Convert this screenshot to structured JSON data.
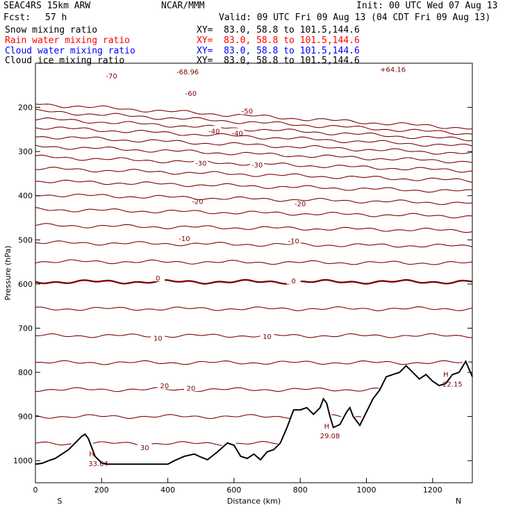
{
  "header": {
    "model": "SEAC4RS 15km ARW",
    "org": "NCAR/MMM",
    "init": "Init: 00 UTC Wed 07 Aug 13",
    "fcst_label": "Fcst:",
    "fcst_value": "57 h",
    "valid": "Valid: 09 UTC Fri 09 Aug 13 (04 CDT Fri 09 Aug 13)"
  },
  "fields": [
    {
      "name": "Snow mixing ratio",
      "xy": "XY=  83.0, 58.8 to 101.5,144.6",
      "color": "#000000"
    },
    {
      "name": "Rain water mixing ratio",
      "xy": "XY=  83.0, 58.8 to 101.5,144.6",
      "color": "#ff0000"
    },
    {
      "name": "Cloud water mixing ratio",
      "xy": "XY=  83.0, 58.8 to 101.5,144.6",
      "color": "#0000ff"
    },
    {
      "name": "Cloud ice mixing ratio",
      "xy": "XY=  83.0, 58.8 to 101.5,144.6",
      "color": "#000000"
    }
  ],
  "chart_data": {
    "type": "line",
    "xlabel": "Distance (km)",
    "ylabel": "Pressure (hPa)",
    "xlim": [
      0,
      1320
    ],
    "ylim": [
      1050,
      100
    ],
    "x_ticks": [
      0,
      200,
      400,
      600,
      800,
      1000,
      1200
    ],
    "y_ticks": [
      200,
      300,
      400,
      500,
      600,
      700,
      800,
      900,
      1000
    ],
    "x_end_labels": {
      "left": "S",
      "right": "N"
    },
    "contour_color": "#800000",
    "isotherms": [
      {
        "value": -70,
        "label": "-70",
        "label_positions": [
          [
            230,
            128
          ]
        ]
      },
      {
        "value": -60,
        "label": "-60",
        "label_positions": [
          [
            470,
            168
          ]
        ]
      },
      {
        "value": -50,
        "label": "-50",
        "label_positions": [
          [
            640,
            208
          ]
        ]
      },
      {
        "value": -40,
        "label": "-40",
        "label_positions": [
          [
            540,
            253
          ],
          [
            610,
            258
          ]
        ]
      },
      {
        "value": -30,
        "label": "-30",
        "label_positions": [
          [
            500,
            326
          ],
          [
            670,
            330
          ]
        ]
      },
      {
        "value": -20,
        "label": "-20",
        "label_positions": [
          [
            490,
            412
          ],
          [
            800,
            418
          ]
        ]
      },
      {
        "value": -10,
        "label": "-10",
        "label_positions": [
          [
            450,
            496
          ],
          [
            780,
            502
          ]
        ]
      },
      {
        "value": 0,
        "label": "0",
        "label_positions": [
          [
            370,
            586
          ],
          [
            780,
            592
          ]
        ],
        "bold": true
      },
      {
        "value": 10,
        "label": "10",
        "label_positions": [
          [
            370,
            722
          ],
          [
            700,
            718
          ]
        ]
      },
      {
        "value": 20,
        "label": "20",
        "label_positions": [
          [
            390,
            830
          ],
          [
            470,
            835
          ]
        ]
      },
      {
        "value": 30,
        "label": "30",
        "label_positions": [
          [
            330,
            970
          ]
        ]
      }
    ],
    "annotations": [
      {
        "text": "-68.96",
        "x": 460,
        "y": 125
      },
      {
        "text": "+64.16",
        "x": 1080,
        "y": 120
      },
      {
        "text": "H",
        "x": 170,
        "y": 990,
        "kind": "max"
      },
      {
        "text": "33.64",
        "x": 190,
        "y": 1012
      },
      {
        "text": "H",
        "x": 880,
        "y": 927,
        "kind": "max"
      },
      {
        "text": "29.08",
        "x": 890,
        "y": 949
      },
      {
        "text": "H",
        "x": 1240,
        "y": 810,
        "kind": "max"
      },
      {
        "text": "22.15",
        "x": 1260,
        "y": 832
      }
    ],
    "terrain": {
      "x": [
        0,
        20,
        40,
        60,
        80,
        100,
        120,
        140,
        150,
        160,
        180,
        200,
        220,
        250,
        300,
        350,
        400,
        420,
        450,
        480,
        500,
        520,
        550,
        580,
        600,
        620,
        640,
        660,
        680,
        700,
        720,
        740,
        760,
        780,
        800,
        820,
        840,
        860,
        870,
        880,
        890,
        900,
        920,
        940,
        950,
        960,
        980,
        1000,
        1020,
        1040,
        1060,
        1080,
        1100,
        1120,
        1140,
        1160,
        1180,
        1200,
        1220,
        1240,
        1260,
        1280,
        1300,
        1320
      ],
      "p": [
        1008,
        1006,
        1000,
        995,
        985,
        975,
        960,
        945,
        940,
        950,
        990,
        1005,
        1008,
        1008,
        1008,
        1008,
        1008,
        1000,
        990,
        985,
        992,
        998,
        980,
        960,
        965,
        990,
        995,
        985,
        998,
        980,
        975,
        960,
        925,
        885,
        885,
        880,
        895,
        880,
        860,
        870,
        900,
        925,
        918,
        890,
        880,
        900,
        920,
        890,
        860,
        840,
        810,
        805,
        800,
        785,
        800,
        815,
        805,
        820,
        830,
        825,
        805,
        800,
        775,
        810
      ]
    }
  }
}
